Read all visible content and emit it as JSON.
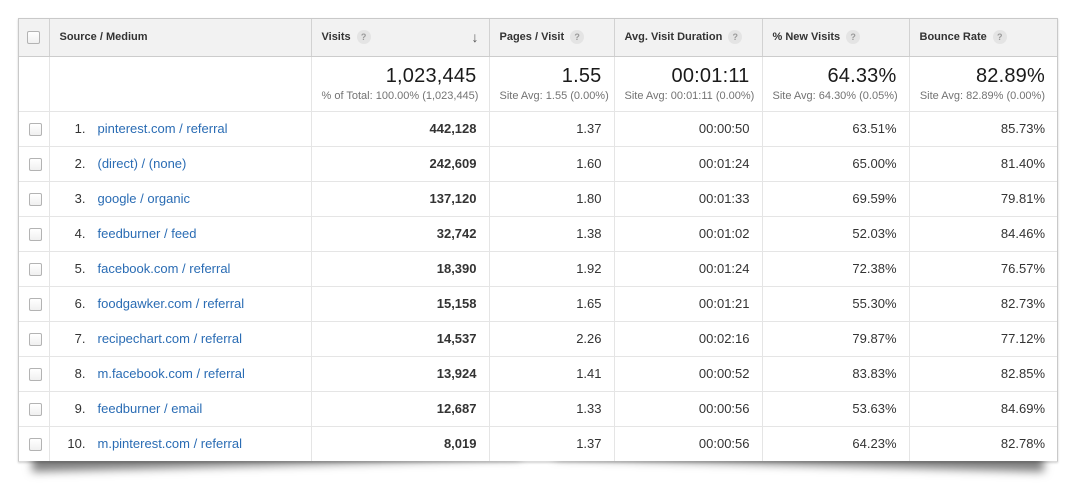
{
  "icons": {
    "help_glyph": "?",
    "sort_desc_glyph": "↓"
  },
  "colors": {
    "link": "#2a6cb4",
    "header_bg": "#f2f2f2",
    "row_border": "#e5e5e5",
    "header_border": "#cccccc",
    "text": "#333333",
    "muted": "#737373"
  },
  "table": {
    "columns": [
      {
        "label": "Source / Medium"
      },
      {
        "label": "Visits"
      },
      {
        "label": "Pages / Visit"
      },
      {
        "label": "Avg. Visit Duration"
      },
      {
        "label": "% New Visits"
      },
      {
        "label": "Bounce Rate"
      }
    ],
    "summary": {
      "visits": {
        "value": "1,023,445",
        "sub": "% of Total: 100.00% (1,023,445)"
      },
      "pages": {
        "value": "1.55",
        "sub": "Site Avg: 1.55 (0.00%)"
      },
      "duration": {
        "value": "00:01:11",
        "sub": "Site Avg: 00:01:11 (0.00%)"
      },
      "new_visits": {
        "value": "64.33%",
        "sub": "Site Avg: 64.30% (0.05%)"
      },
      "bounce": {
        "value": "82.89%",
        "sub": "Site Avg: 82.89% (0.00%)"
      }
    },
    "rows": [
      {
        "rank": "1.",
        "source": "pinterest.com / referral",
        "visits": "442,128",
        "pages": "1.37",
        "duration": "00:00:50",
        "new_visits": "63.51%",
        "bounce": "85.73%"
      },
      {
        "rank": "2.",
        "source": "(direct) / (none)",
        "visits": "242,609",
        "pages": "1.60",
        "duration": "00:01:24",
        "new_visits": "65.00%",
        "bounce": "81.40%"
      },
      {
        "rank": "3.",
        "source": "google / organic",
        "visits": "137,120",
        "pages": "1.80",
        "duration": "00:01:33",
        "new_visits": "69.59%",
        "bounce": "79.81%"
      },
      {
        "rank": "4.",
        "source": "feedburner / feed",
        "visits": "32,742",
        "pages": "1.38",
        "duration": "00:01:02",
        "new_visits": "52.03%",
        "bounce": "84.46%"
      },
      {
        "rank": "5.",
        "source": "facebook.com / referral",
        "visits": "18,390",
        "pages": "1.92",
        "duration": "00:01:24",
        "new_visits": "72.38%",
        "bounce": "76.57%"
      },
      {
        "rank": "6.",
        "source": "foodgawker.com / referral",
        "visits": "15,158",
        "pages": "1.65",
        "duration": "00:01:21",
        "new_visits": "55.30%",
        "bounce": "82.73%"
      },
      {
        "rank": "7.",
        "source": "recipechart.com / referral",
        "visits": "14,537",
        "pages": "2.26",
        "duration": "00:02:16",
        "new_visits": "79.87%",
        "bounce": "77.12%"
      },
      {
        "rank": "8.",
        "source": "m.facebook.com / referral",
        "visits": "13,924",
        "pages": "1.41",
        "duration": "00:00:52",
        "new_visits": "83.83%",
        "bounce": "82.85%"
      },
      {
        "rank": "9.",
        "source": "feedburner / email",
        "visits": "12,687",
        "pages": "1.33",
        "duration": "00:00:56",
        "new_visits": "53.63%",
        "bounce": "84.69%"
      },
      {
        "rank": "10.",
        "source": "m.pinterest.com / referral",
        "visits": "8,019",
        "pages": "1.37",
        "duration": "00:00:56",
        "new_visits": "64.23%",
        "bounce": "82.78%"
      }
    ]
  }
}
